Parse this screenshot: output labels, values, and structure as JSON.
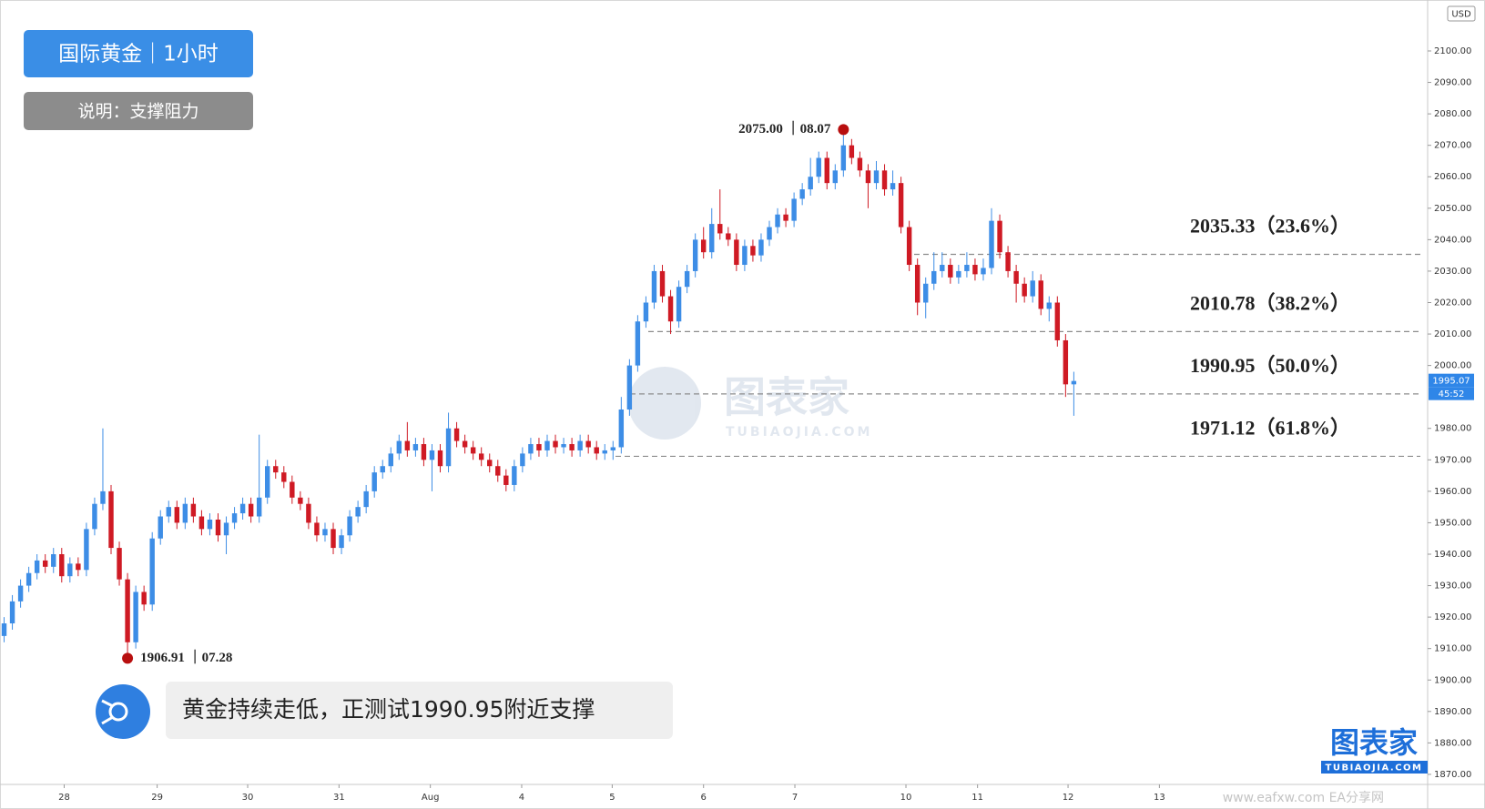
{
  "chart_data": {
    "type": "candlestick",
    "title": "国际黄金｜1小时",
    "subtitle": "说明：支撑阻力",
    "currency": "USD",
    "up_color": "#3d8de6",
    "down_color": "#cf1a24",
    "grid": false,
    "open": [
      1914,
      1918,
      1925,
      1930,
      1934,
      1938,
      1936,
      1940,
      1933,
      1937,
      1935,
      1948,
      1956,
      1960,
      1942,
      1932,
      1912,
      1928,
      1924,
      1945,
      1952,
      1955,
      1950,
      1956,
      1952,
      1948,
      1951,
      1946,
      1950,
      1953,
      1956,
      1952,
      1958,
      1968,
      1966,
      1963,
      1958,
      1956,
      1950,
      1946,
      1948,
      1942,
      1946,
      1952,
      1955,
      1960,
      1966,
      1968,
      1972,
      1976,
      1973,
      1975,
      1970,
      1973,
      1968,
      1980,
      1976,
      1974,
      1972,
      1970,
      1968,
      1965,
      1962,
      1968,
      1972,
      1975,
      1973,
      1976,
      1974,
      1975,
      1973,
      1976,
      1974,
      1972,
      1973,
      1974,
      1986,
      2000,
      2014,
      2020,
      2030,
      2022,
      2014,
      2025,
      2030,
      2040,
      2036,
      2045,
      2042,
      2040,
      2032,
      2038,
      2035,
      2040,
      2044,
      2048,
      2046,
      2053,
      2056,
      2060,
      2066,
      2058,
      2062,
      2070,
      2066,
      2062,
      2058,
      2062,
      2056,
      2058,
      2044,
      2032,
      2020,
      2026,
      2030,
      2032,
      2028,
      2030,
      2032,
      2029,
      2031,
      2046,
      2036,
      2030,
      2026,
      2022,
      2027,
      2018,
      2020,
      2008,
      1994
    ],
    "high": [
      1920,
      1927,
      1932,
      1936,
      1940,
      1940,
      1942,
      1942,
      1939,
      1939,
      1950,
      1958,
      1980,
      1962,
      1944,
      1934,
      1930,
      1930,
      1947,
      1954,
      1957,
      1957,
      1958,
      1958,
      1954,
      1953,
      1953,
      1952,
      1955,
      1958,
      1958,
      1978,
      1970,
      1970,
      1968,
      1965,
      1960,
      1958,
      1952,
      1950,
      1950,
      1948,
      1954,
      1957,
      1962,
      1968,
      1970,
      1974,
      1978,
      1982,
      1977,
      1977,
      1975,
      1975,
      1985,
      1982,
      1978,
      1976,
      1974,
      1972,
      1970,
      1967,
      1970,
      1974,
      1977,
      1977,
      1978,
      1978,
      1977,
      1977,
      1978,
      1978,
      1976,
      1975,
      1976,
      1990,
      2002,
      2016,
      2022,
      2032,
      2032,
      2024,
      2027,
      2032,
      2042,
      2044,
      2050,
      2056,
      2044,
      2042,
      2040,
      2040,
      2042,
      2046,
      2050,
      2050,
      2055,
      2058,
      2066,
      2068,
      2068,
      2064,
      2075,
      2072,
      2068,
      2064,
      2065,
      2064,
      2062,
      2060,
      2046,
      2034,
      2028,
      2036,
      2036,
      2034,
      2032,
      2036,
      2034,
      2034,
      2050,
      2048,
      2038,
      2032,
      2028,
      2030,
      2029,
      2022,
      2022,
      2010,
      1998
    ],
    "low": [
      1912,
      1916,
      1923,
      1928,
      1932,
      1934,
      1934,
      1931,
      1931,
      1933,
      1933,
      1946,
      1954,
      1940,
      1930,
      1906.91,
      1910,
      1922,
      1922,
      1943,
      1950,
      1948,
      1948,
      1950,
      1946,
      1946,
      1944,
      1940,
      1948,
      1951,
      1950,
      1950,
      1956,
      1964,
      1961,
      1956,
      1954,
      1948,
      1944,
      1944,
      1940,
      1940,
      1944,
      1950,
      1953,
      1958,
      1964,
      1966,
      1970,
      1971,
      1971,
      1968,
      1960,
      1966,
      1966,
      1974,
      1972,
      1970,
      1968,
      1966,
      1963,
      1960,
      1960,
      1966,
      1970,
      1971,
      1971,
      1972,
      1972,
      1971,
      1971,
      1972,
      1970,
      1970,
      1970,
      1972,
      1984,
      1998,
      2012,
      2018,
      2020,
      2010,
      2012,
      2023,
      2028,
      2034,
      2034,
      2040,
      2038,
      2030,
      2030,
      2033,
      2033,
      2038,
      2042,
      2044,
      2044,
      2051,
      2054,
      2058,
      2056,
      2056,
      2060,
      2064,
      2060,
      2050,
      2056,
      2054,
      2054,
      2042,
      2030,
      2016,
      2015,
      2024,
      2028,
      2026,
      2026,
      2028,
      2027,
      2027,
      2029,
      2034,
      2028,
      2020,
      2020,
      2020,
      2016,
      2014,
      2006,
      1990,
      1984
    ],
    "close": [
      1918,
      1925,
      1930,
      1934,
      1938,
      1936,
      1940,
      1933,
      1937,
      1935,
      1948,
      1956,
      1960,
      1942,
      1932,
      1912,
      1928,
      1924,
      1945,
      1952,
      1955,
      1950,
      1956,
      1952,
      1948,
      1951,
      1946,
      1950,
      1953,
      1956,
      1952,
      1958,
      1968,
      1966,
      1963,
      1958,
      1956,
      1950,
      1946,
      1948,
      1942,
      1946,
      1952,
      1955,
      1960,
      1966,
      1968,
      1972,
      1976,
      1973,
      1975,
      1970,
      1973,
      1968,
      1980,
      1976,
      1974,
      1972,
      1970,
      1968,
      1965,
      1962,
      1968,
      1972,
      1975,
      1973,
      1976,
      1974,
      1975,
      1973,
      1976,
      1974,
      1972,
      1973,
      1974,
      1986,
      2000,
      2014,
      2020,
      2030,
      2022,
      2014,
      2025,
      2030,
      2040,
      2036,
      2045,
      2042,
      2040,
      2032,
      2038,
      2035,
      2040,
      2044,
      2048,
      2046,
      2053,
      2056,
      2060,
      2066,
      2058,
      2062,
      2070,
      2066,
      2062,
      2058,
      2062,
      2056,
      2058,
      2044,
      2032,
      2020,
      2026,
      2030,
      2032,
      2028,
      2030,
      2032,
      2029,
      2031,
      2046,
      2036,
      2030,
      2026,
      2022,
      2027,
      2018,
      2020,
      2008,
      1994,
      1995.07
    ],
    "xlim": [
      -0.5,
      173
    ],
    "xticks": [
      {
        "value": 7.3,
        "label": "28"
      },
      {
        "value": 18.6,
        "label": "29"
      },
      {
        "value": 29.6,
        "label": "30"
      },
      {
        "value": 40.7,
        "label": "31"
      },
      {
        "value": 51.8,
        "label": "Aug"
      },
      {
        "value": 62.9,
        "label": "4"
      },
      {
        "value": 73.9,
        "label": "5"
      },
      {
        "value": 85,
        "label": "6"
      },
      {
        "value": 96.1,
        "label": "7"
      },
      {
        "value": 109.6,
        "label": "10"
      },
      {
        "value": 118.3,
        "label": "11"
      },
      {
        "value": 129.3,
        "label": "12"
      },
      {
        "value": 140.4,
        "label": "13"
      }
    ],
    "ylim": [
      1866.8,
      2116.2
    ],
    "yticks": [
      {
        "value": 1870,
        "label": "1870.00"
      },
      {
        "value": 1880,
        "label": "1880.00"
      },
      {
        "value": 1890,
        "label": "1890.00"
      },
      {
        "value": 1900,
        "label": "1900.00"
      },
      {
        "value": 1910,
        "label": "1910.00"
      },
      {
        "value": 1920,
        "label": "1920.00"
      },
      {
        "value": 1930,
        "label": "1930.00"
      },
      {
        "value": 1940,
        "label": "1940.00"
      },
      {
        "value": 1950,
        "label": "1950.00"
      },
      {
        "value": 1960,
        "label": "1960.00"
      },
      {
        "value": 1970,
        "label": "1970.00"
      },
      {
        "value": 1980,
        "label": "1980.00"
      },
      {
        "value": 2000,
        "label": "2000.00"
      },
      {
        "value": 2010,
        "label": "2010.00"
      },
      {
        "value": 2020,
        "label": "2020.00"
      },
      {
        "value": 2030,
        "label": "2030.00"
      },
      {
        "value": 2040,
        "label": "2040.00"
      },
      {
        "value": 2050,
        "label": "2050.00"
      },
      {
        "value": 2060,
        "label": "2060.00"
      },
      {
        "value": 2070,
        "label": "2070.00"
      },
      {
        "value": 2080,
        "label": "2080.00"
      },
      {
        "value": 2090,
        "label": "2090.00"
      },
      {
        "value": 2100,
        "label": "2100.00"
      }
    ],
    "last_price": 1995.07,
    "countdown": "45:52",
    "levels": [
      {
        "value": 2035.33,
        "label": "2035.33（23.6%）"
      },
      {
        "value": 2010.78,
        "label": "2010.78（38.2%）"
      },
      {
        "value": 1990.95,
        "label": "1990.95（50.0%）"
      },
      {
        "value": 1971.12,
        "label": "1971.12（61.8%）"
      }
    ],
    "annotations": [
      {
        "x": 102,
        "value": 2075.0,
        "label": "2075.00 ｜08.07"
      },
      {
        "x": 15,
        "value": 1906.91,
        "label": "1906.91 ｜07.28"
      }
    ],
    "comment": "黄金持续走低，正测试1990.95附近支撑"
  },
  "brand": {
    "logo": "图表家",
    "domain": "TUBIAOJIA.COM"
  },
  "footer_watermark": "www.eafxw.com   EA分享网"
}
